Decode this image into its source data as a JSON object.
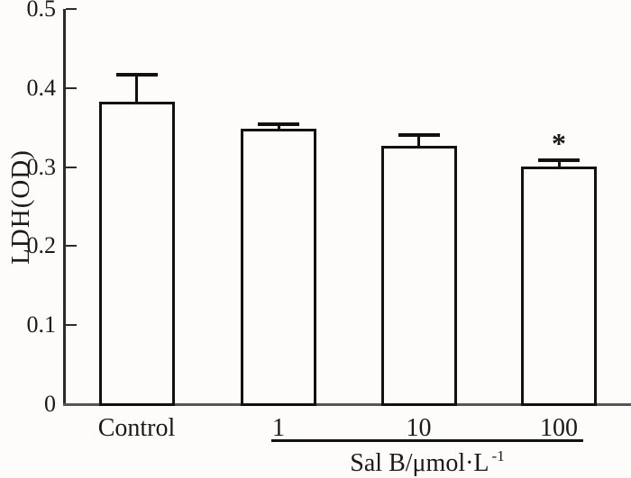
{
  "figure": {
    "background": "#fdfcfa",
    "axis_color": "#2b2b2b",
    "baseline_color": "#555555",
    "bar_fill": "#fdfcfa",
    "bar_border_color": "#111111",
    "text_color": "#1a1a1a"
  },
  "chart_data": {
    "type": "bar",
    "title": "",
    "ylabel": "LDH(OD)",
    "xlabel": "Sal B/μmol·L⁻¹",
    "xlabel_main": "Sal B/μmol·L",
    "xlabel_superscript": "-1",
    "categories": [
      "Control",
      "1",
      "10",
      "100"
    ],
    "values": [
      0.383,
      0.348,
      0.327,
      0.301
    ],
    "errors": [
      0.034,
      0.006,
      0.013,
      0.008
    ],
    "error_direction": "upper",
    "significance_markers": [
      {
        "category": "100",
        "symbol": "*"
      }
    ],
    "ylim": [
      0,
      0.5
    ],
    "yticks": [
      0,
      0.1,
      0.2,
      0.3,
      0.4,
      0.5
    ],
    "ytick_labels": [
      "0",
      "0.1",
      "0.2",
      "0.3",
      "0.4",
      "0.5"
    ],
    "grouped_categories": [
      "1",
      "10",
      "100"
    ],
    "group_underline": true,
    "grid": false,
    "legend": null
  }
}
